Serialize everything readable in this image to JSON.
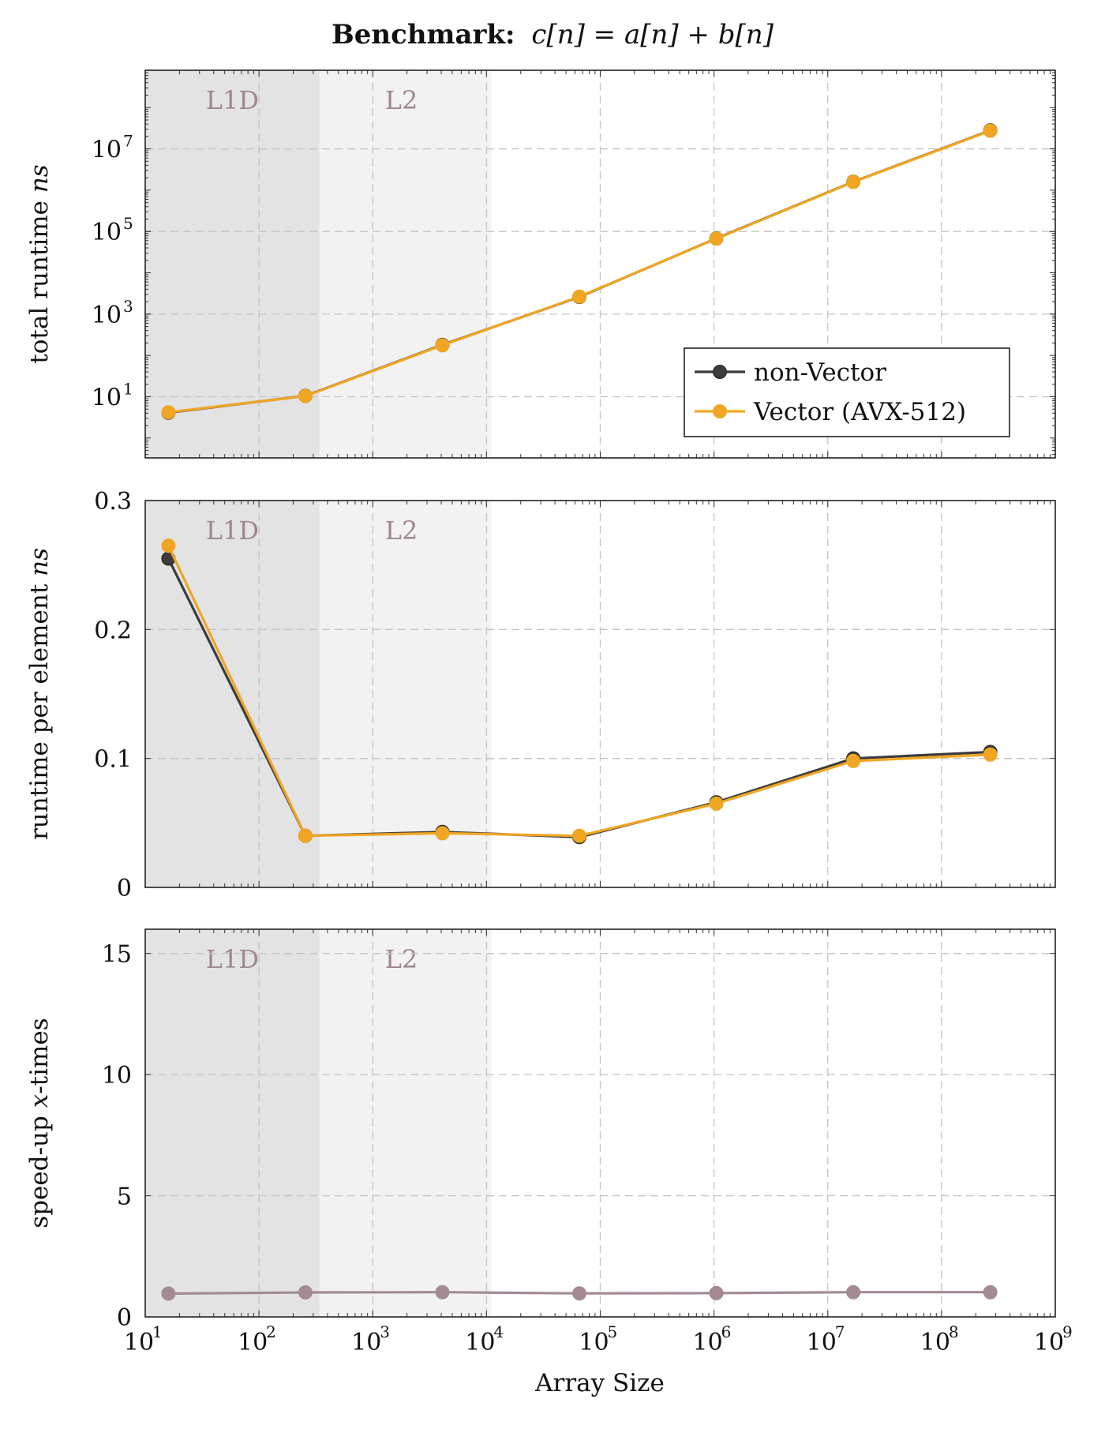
{
  "figure": {
    "title_bold": "Benchmark:",
    "title_formula": "c[n] = a[n] + b[n]",
    "xlabel": "Array Size",
    "x_tick_labels": [
      "10",
      "10",
      "10",
      "10",
      "10",
      "10",
      "10",
      "10",
      "10"
    ],
    "x_tick_exponents": [
      "1",
      "2",
      "3",
      "4",
      "5",
      "6",
      "7",
      "8",
      "9"
    ]
  },
  "colors": {
    "non_vector": "#3c3c3c",
    "vector": "#f0a623",
    "speedup": "#a48b93",
    "l1d_region": "#e3e3e3",
    "l2_region": "#f2f2f2",
    "region_label": "#a0868e",
    "grid": "#c4c4c4"
  },
  "chart_data": [
    {
      "type": "line",
      "panel": "top",
      "title": "",
      "xlabel": "",
      "ylabel": "total runtime ns",
      "x_scale": "log",
      "y_scale": "log",
      "xlim": [
        10,
        1000000000
      ],
      "ylim": [
        0.33,
        800000000
      ],
      "y_ticks": [
        10,
        1000,
        100000,
        10000000
      ],
      "y_tick_labels": [
        "10",
        "10",
        "10",
        "10"
      ],
      "y_tick_exponents": [
        "1",
        "3",
        "5",
        "7"
      ],
      "grid": true,
      "legend": "center-right",
      "regions": [
        {
          "label": "L1D",
          "from": 10,
          "to": 340
        },
        {
          "label": "L2",
          "from": 340,
          "to": 11000
        }
      ],
      "x": [
        16,
        256,
        4096,
        65536,
        1048576,
        16777216,
        268435456
      ],
      "series": [
        {
          "name": "non-Vector",
          "values": [
            4.1,
            10.5,
            180,
            2600,
            68000,
            1600000,
            28000000
          ]
        },
        {
          "name": "Vector (AVX-512)",
          "values": [
            4.2,
            10.4,
            176,
            2650,
            67000,
            1580000,
            27500000
          ]
        }
      ]
    },
    {
      "type": "line",
      "panel": "middle",
      "title": "",
      "xlabel": "",
      "ylabel": "runtime per element ns",
      "x_scale": "log",
      "y_scale": "linear",
      "xlim": [
        10,
        1000000000
      ],
      "ylim": [
        0,
        0.3
      ],
      "y_ticks": [
        0,
        0.1,
        0.2,
        0.3
      ],
      "y_tick_labels": [
        "0",
        "0.1",
        "0.2",
        "0.3"
      ],
      "grid": true,
      "regions": [
        {
          "label": "L1D",
          "from": 10,
          "to": 340
        },
        {
          "label": "L2",
          "from": 340,
          "to": 11000
        }
      ],
      "x": [
        16,
        256,
        4096,
        65536,
        1048576,
        16777216,
        268435456
      ],
      "series": [
        {
          "name": "non-Vector",
          "values": [
            0.255,
            0.04,
            0.043,
            0.039,
            0.066,
            0.1,
            0.105
          ]
        },
        {
          "name": "Vector (AVX-512)",
          "values": [
            0.265,
            0.04,
            0.042,
            0.04,
            0.065,
            0.098,
            0.103
          ]
        }
      ]
    },
    {
      "type": "line",
      "panel": "bottom",
      "title": "",
      "xlabel": "Array Size",
      "ylabel": "speed-up x-times",
      "x_scale": "log",
      "y_scale": "linear",
      "xlim": [
        10,
        1000000000
      ],
      "ylim": [
        0,
        16
      ],
      "y_ticks": [
        0,
        5,
        10,
        15
      ],
      "y_tick_labels": [
        "0",
        "5",
        "10",
        "15"
      ],
      "grid": true,
      "regions": [
        {
          "label": "L1D",
          "from": 10,
          "to": 340
        },
        {
          "label": "L2",
          "from": 340,
          "to": 11000
        }
      ],
      "x": [
        16,
        256,
        4096,
        65536,
        1048576,
        16777216,
        268435456
      ],
      "series": [
        {
          "values": [
            0.96,
            1.01,
            1.02,
            0.97,
            0.98,
            1.02,
            1.02
          ]
        }
      ]
    }
  ]
}
